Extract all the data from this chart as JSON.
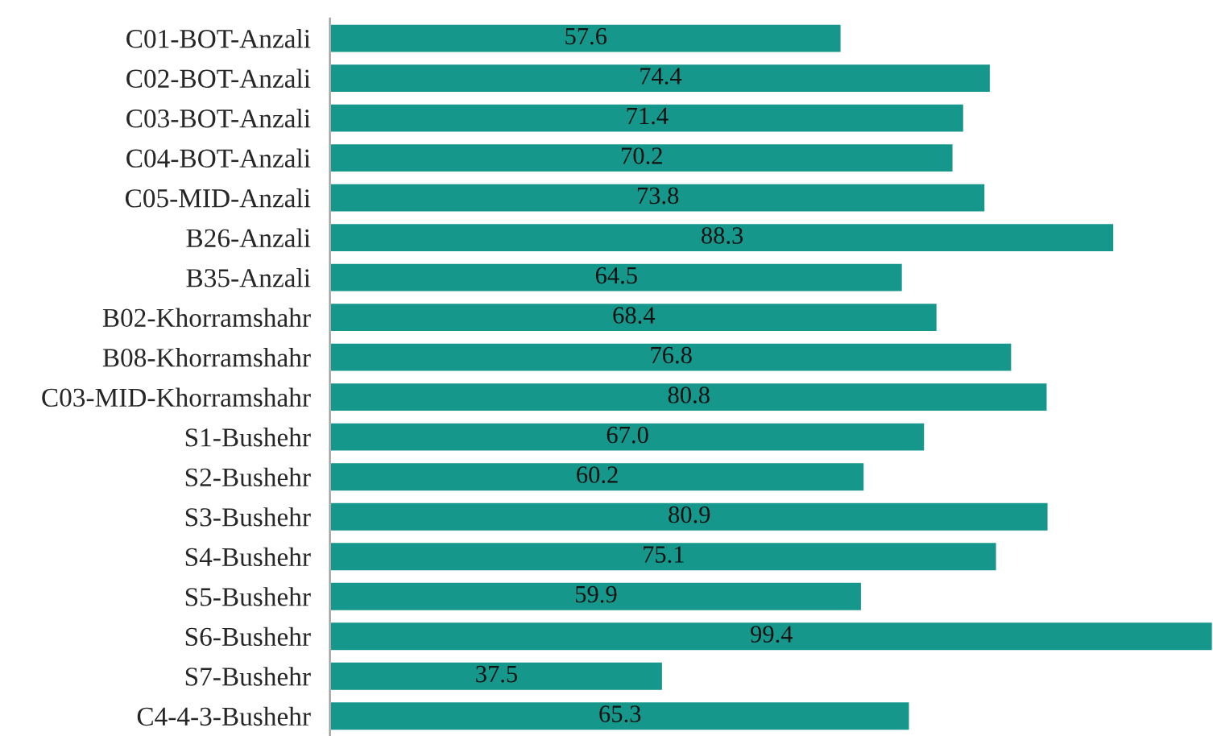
{
  "chart_data": {
    "type": "bar",
    "orientation": "horizontal",
    "categories": [
      "C01-BOT-Anzali",
      "C02-BOT-Anzali",
      "C03-BOT-Anzali",
      "C04-BOT-Anzali",
      "C05-MID-Anzali",
      "B26-Anzali",
      "B35-Anzali",
      "B02-Khorramshahr",
      "B08-Khorramshahr",
      "C03-MID-Khorramshahr",
      "S1-Bushehr",
      "S2-Bushehr",
      "S3-Bushehr",
      "S4-Bushehr",
      "S5-Bushehr",
      "S6-Bushehr",
      "S7-Bushehr",
      "C4-4-3-Bushehr"
    ],
    "values": [
      57.6,
      74.4,
      71.4,
      70.2,
      73.8,
      88.3,
      64.5,
      68.4,
      76.8,
      80.8,
      67.0,
      60.2,
      80.9,
      75.1,
      59.9,
      99.4,
      37.5,
      65.3
    ],
    "value_labels": [
      "57.6",
      "74.4",
      "71.4",
      "70.2",
      "73.8",
      "88.3",
      "64.5",
      "68.4",
      "76.8",
      "80.8",
      "67.0",
      "60.2",
      "80.9",
      "75.1",
      "59.9",
      "99.4",
      "37.5",
      "65.3"
    ],
    "color": "#16978b",
    "grid": false,
    "legend": false
  }
}
